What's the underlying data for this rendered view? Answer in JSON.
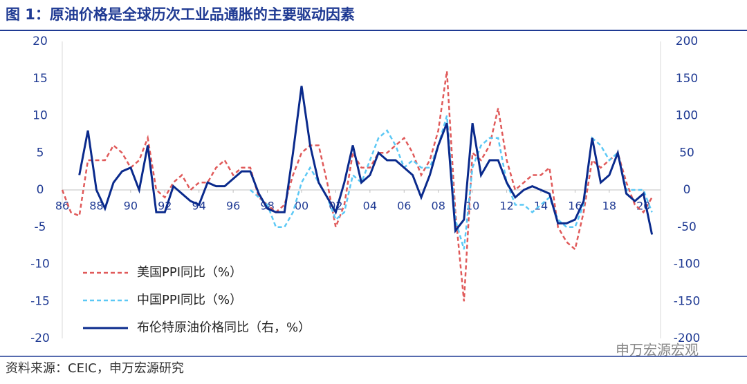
{
  "title": "图 1：原油价格是全球历次工业品通胀的主要驱动因素",
  "source": "资料来源：CEIC，申万宏源研究",
  "watermark": "申万宏源宏观",
  "chart_data": {
    "type": "line",
    "x": [
      1986,
      1986.5,
      1987,
      1987.5,
      1988,
      1988.5,
      1989,
      1989.5,
      1990,
      1990.5,
      1991,
      1991.5,
      1992,
      1992.5,
      1993,
      1993.5,
      1994,
      1994.5,
      1995,
      1995.5,
      1996,
      1996.5,
      1997,
      1997.5,
      1998,
      1998.5,
      1999,
      1999.5,
      2000,
      2000.5,
      2001,
      2001.5,
      2002,
      2002.5,
      2003,
      2003.5,
      2004,
      2004.5,
      2005,
      2005.5,
      2006,
      2006.5,
      2007,
      2007.5,
      2008,
      2008.5,
      2009,
      2009.5,
      2010,
      2010.5,
      2011,
      2011.5,
      2012,
      2012.5,
      2013,
      2013.5,
      2014,
      2014.5,
      2015,
      2015.5,
      2016,
      2016.5,
      2017,
      2017.5,
      2018,
      2018.5,
      2019,
      2019.5,
      2020,
      2020.5
    ],
    "xlim": [
      1986,
      2021
    ],
    "xticks": [
      {
        "value": 1986,
        "label": "86"
      },
      {
        "value": 1988,
        "label": "88"
      },
      {
        "value": 1990,
        "label": "90"
      },
      {
        "value": 1992,
        "label": "92"
      },
      {
        "value": 1994,
        "label": "94"
      },
      {
        "value": 1996,
        "label": "96"
      },
      {
        "value": 1998,
        "label": "98"
      },
      {
        "value": 2000,
        "label": "00"
      },
      {
        "value": 2002,
        "label": "02"
      },
      {
        "value": 2004,
        "label": "04"
      },
      {
        "value": 2006,
        "label": "06"
      },
      {
        "value": 2008,
        "label": "08"
      },
      {
        "value": 2010,
        "label": "10"
      },
      {
        "value": 2012,
        "label": "12"
      },
      {
        "value": 2014,
        "label": "14"
      },
      {
        "value": 2016,
        "label": "16"
      },
      {
        "value": 2018,
        "label": "18"
      },
      {
        "value": 2020,
        "label": "20"
      }
    ],
    "ylim": [
      -20,
      20
    ],
    "yticks": [
      -20,
      -15,
      -10,
      -5,
      0,
      5,
      10,
      15,
      20
    ],
    "y2lim": [
      -200,
      200
    ],
    "y2ticks": [
      -200,
      -150,
      -100,
      -50,
      0,
      50,
      100,
      150,
      200
    ],
    "series": [
      {
        "name": "美国PPI同比（%）",
        "color": "#e05a5a",
        "dash": true,
        "values": [
          0,
          -3,
          -3.5,
          4,
          4,
          4,
          6,
          5,
          3,
          4,
          7,
          0,
          -1,
          1,
          2,
          0,
          1,
          1,
          3,
          4,
          2,
          3,
          3,
          -1,
          -2,
          -3,
          -2,
          2,
          5,
          6,
          6,
          1,
          -5,
          -2,
          5,
          3,
          3,
          5,
          5,
          6,
          7,
          5,
          2,
          4,
          8,
          16,
          -3,
          -15,
          5,
          4,
          6,
          11,
          4,
          0,
          1,
          2,
          2,
          3,
          -5,
          -7,
          -8,
          -3,
          4,
          3,
          4,
          5,
          1,
          -2,
          -3,
          -1
        ]
      },
      {
        "name": "中国PPI同比（%）",
        "color": "#5bc8f5",
        "dash": true,
        "values": [
          null,
          null,
          null,
          null,
          null,
          null,
          null,
          null,
          null,
          null,
          null,
          null,
          null,
          null,
          null,
          null,
          null,
          null,
          null,
          null,
          null,
          null,
          0,
          -1,
          -2,
          -5,
          -5,
          -3,
          1,
          3,
          1,
          -1,
          -4,
          -3,
          2,
          1,
          4,
          7,
          8,
          6,
          3,
          4,
          3,
          3,
          6,
          10,
          -4,
          -8,
          3,
          6,
          7,
          7,
          1,
          -2,
          -2,
          -3,
          -2,
          -1,
          -4,
          -5,
          -5,
          -2,
          7,
          6,
          4,
          5,
          0,
          0,
          0,
          -3
        ]
      },
      {
        "name": "布伦特原油价格同比（右，%）",
        "color": "#0a2a8c",
        "dash": false,
        "axis": "y2",
        "values": [
          null,
          null,
          20,
          80,
          0,
          -25,
          10,
          25,
          30,
          0,
          60,
          -30,
          -30,
          5,
          -5,
          -15,
          -20,
          10,
          5,
          5,
          15,
          25,
          25,
          -5,
          -25,
          -30,
          -30,
          50,
          140,
          60,
          10,
          -10,
          -30,
          10,
          60,
          10,
          20,
          50,
          40,
          40,
          30,
          20,
          -10,
          20,
          60,
          90,
          -55,
          -40,
          90,
          20,
          40,
          40,
          10,
          -10,
          0,
          5,
          0,
          -5,
          -45,
          -45,
          -40,
          -15,
          70,
          10,
          20,
          50,
          -5,
          -15,
          -5,
          -60
        ]
      }
    ]
  }
}
